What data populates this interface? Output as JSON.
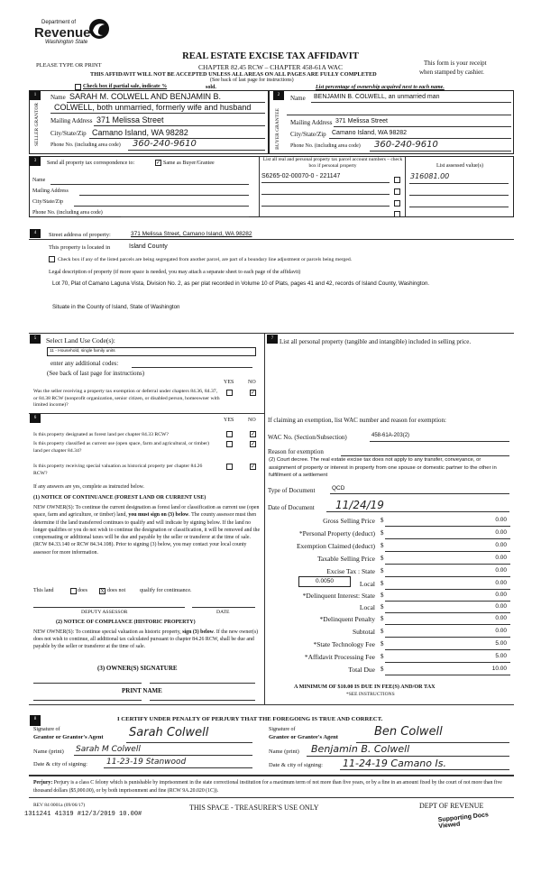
{
  "header": {
    "dept_top": "Department of",
    "dept_name": "Revenue",
    "dept_state": "Washington State",
    "please": "PLEASE TYPE OR PRINT",
    "title": "REAL ESTATE EXCISE TAX AFFIDAVIT",
    "chapter": "CHAPTER 82.45 RCW – CHAPTER 458-61A WAC",
    "warning": "THIS AFFIDAVIT WILL NOT BE ACCEPTED UNLESS ALL AREAS ON ALL PAGES ARE FULLY COMPLETED",
    "receipt1": "This form is your receipt",
    "receipt2": "when stamped by cashier.",
    "see_back": "(See back of last page for instructions)",
    "partial_sale": "Check box if partial sale, indicate %",
    "sold": "sold.",
    "ownership_note": "List percentage of ownership acquired next to each name."
  },
  "seller": {
    "num": "1",
    "side": "SELLER GRANTOR",
    "name_label": "Name",
    "name1": "SARAH M. COLWELL AND BENJAMIN B.",
    "name2": "COLWELL, both unmarried, formerly wife and husband",
    "mail_label": "Mailing Address",
    "mail": "371 Melissa Street",
    "city_label": "City/State/Zip",
    "city": "Camano Island, WA  98282",
    "phone_label": "Phone No. (including area code)",
    "phone": "360-240-9610"
  },
  "buyer": {
    "num": "2",
    "side": "BUYER GRANTEE",
    "name_label": "Name",
    "name1": "BENJAMIN B. COLWELL, an unmarried man",
    "mail_label": "Mailing Address",
    "mail": "371 Melissa Street",
    "city_label": "City/State/Zip",
    "city": "Camano Island, WA  98282",
    "phone_label": "Phone No. (including area code)",
    "phone": "360-240-9610"
  },
  "section3": {
    "num": "3",
    "send": "Send all property tax correspondence to:",
    "same": "Same as Buyer/Grantee",
    "same_checked": true,
    "name_label": "Name",
    "mail_label": "Mailing Address",
    "city_label": "City/State/Zip",
    "phone_label": "Phone No. (including area code)",
    "parcel_header": "List all real and personal property tax parcel account numbers – check box if personal property",
    "assessed_header": "List assessed value(s)",
    "parcel": "S6265-02-00070-0 - 221147",
    "assessed": "316081.00"
  },
  "section4": {
    "num": "4",
    "street_label": "Street address of property:",
    "street": "371 Melissa Street, Camano Island, WA  98282",
    "located_label": "This property is located in",
    "county": "Island County",
    "segregate": "Check box if any of the listed parcels are being segregated from another parcel, are part of a boundary line adjustment or parcels being merged.",
    "legal_label": "Legal description of property (if more space is needed, you may attach a separate sheet to each page of the affidavit)",
    "legal1": "Lot 70, Plat of Camano Laguna Vista, Division No. 2, as per plat recorded in Volume 10 of Plats, pages 41 and 42, records of Island County, Washington.",
    "legal2": "Situate in the County of Island, State of Washington"
  },
  "section5": {
    "num": "5",
    "label": "Select Land Use Code(s):",
    "code": "11 - Household, single family units",
    "additional": "enter any additional codes:",
    "see_back": "(See back of last page for instructions)",
    "yes": "YES",
    "no": "NO",
    "question": "Was the seller receiving a property tax exemption or deferral under chapters 84.36, 84.37, or 84.38 RCW (nonprofit organization, senior citizen, or disabled person, homeowner with limited income)?",
    "answer": "NO"
  },
  "section6": {
    "num": "6",
    "yes": "YES",
    "no": "NO",
    "q1": "Is this property designated as forest land per chapter 84.33 RCW?",
    "q2": "Is this property classified as current use (open space, farm and agricultural, or timber) land per chapter 84.34?",
    "q3": "Is this property receiving special valuation as historical property per chapter 84.26 RCW?",
    "answers": [
      "NO",
      "NO",
      "NO"
    ],
    "if_yes": "If any answers are yes, complete as instructed below.",
    "notice1_title": "(1) NOTICE OF CONTINUANCE  (FOREST LAND OR CURRENT USE)",
    "notice1_a": "NEW OWNER(S): To continue the current designation as forest land or classification as current use (open space, farm and agriculture, or timber) land, ",
    "notice1_bold": "you must sign on (3) below",
    "notice1_b": ". The county assessor must then determine if the land transferred continues to qualify and will indicate by signing below. If the land no longer qualifies or you do not wish to continue the designation or classification, it will be removed and the compensating or additional taxes will be due and payable by the seller or transferor at the time of sale. (RCW 84.33.140 or RCW 84.34.108). Prior to signing (3) below, you may contact your local county assessor for more information.",
    "this_land": "This land",
    "does": "does",
    "does_not": "does not",
    "qualify": "qualify for continuance.",
    "selected": "does not",
    "deputy": "DEPUTY ASSESSOR",
    "date": "DATE",
    "notice2_title": "(2) NOTICE OF COMPLIANCE (HISTORIC PROPERTY)",
    "notice2_a": "NEW OWNER(S): To continue special valuation as historic property, ",
    "notice2_bold": "sign (3) below",
    "notice2_b": ". If the new owner(s) does not wish to continue, all additional tax calculated pursuant to chapter 84.26 RCW, shall be due and payable by the seller or transferor at the time of sale.",
    "owner_sig": "(3)  OWNER(S) SIGNATURE",
    "print_name": "PRINT NAME"
  },
  "section7": {
    "num": "7",
    "label": "List all  personal property (tangible and intangible) included in selling price.",
    "exemption_label": "If claiming an exemption, list WAC number and reason for exemption:",
    "wac_label": "WAC No. (Section/Subsection)",
    "wac": "458-61A-203(2)",
    "reason_label": "Reason for exemption",
    "reason": "(2) Court decree. The real estate excise tax does not apply to any transfer, conveyance, or assignment of property or interest in property from one spouse or domestic partner to the other in fulfillment of a settlement",
    "type_label": "Type of Document",
    "type": "QCD",
    "date_label": "Date of Document",
    "date": "11/24/19"
  },
  "fees": [
    {
      "label": "Gross Selling Price",
      "value": "0.00"
    },
    {
      "label": "*Personal Property (deduct)",
      "value": "0.00"
    },
    {
      "label": "Exemption Claimed (deduct)",
      "value": "0.00"
    },
    {
      "label": "Taxable Selling Price",
      "value": "0.00"
    },
    {
      "label": "Excise Tax : State",
      "value": "0.00"
    },
    {
      "label": "Local",
      "value": "0.00",
      "rate": "0.0050"
    },
    {
      "label": "*Delinquent Interest: State",
      "value": "0.00"
    },
    {
      "label": "Local",
      "value": "0.00"
    },
    {
      "label": "*Delinquent Penalty",
      "value": "0.00"
    },
    {
      "label": "Subtotal",
      "value": "0.00"
    },
    {
      "label": "*State Technology Fee",
      "value": "5.00"
    },
    {
      "label": "*Affidavit Processing Fee",
      "value": "5.00"
    },
    {
      "label": "Total Due",
      "value": "10.00"
    }
  ],
  "fee_currency": "$",
  "minimum": "A MINIMUM OF $10.00 IS DUE IN FEE(S) AND/OR TAX",
  "see_instr": "*SEE INSTRUCTIONS",
  "section8": {
    "num": "8",
    "certify": "I CERTIFY UNDER PENALTY OF PERJURY THAT THE FOREGOING IS TRUE AND CORRECT.",
    "sig_of": "Signature of",
    "grantor_agent": "Grantor or Grantor's Agent",
    "grantee_agent": "Grantee or Grantee's Agent",
    "name_print": "Name (print)",
    "date_city": "Date & city of signing:",
    "grantor_sig": "Sarah Colwell",
    "grantor_name": "Sarah M Colwell",
    "grantor_date": "11-23-19  Stanwood",
    "grantee_sig": "Ben Colwell",
    "grantee_name": "Benjamin B. Colwell",
    "grantee_date": "11-24-19  Camano Is."
  },
  "perjury": {
    "bold": "Perjury:",
    "text": " Perjury is a class C felony which is punishable by imprisonment in the state correctional institution for a maximum term of not more than five years, or by a fine in an amount fixed by the court of not more than five thousand dollars ($5,000.00), or by both imprisonment and fine (RCW 9A.20.020 (1C))."
  },
  "footer": {
    "rev": "REV 84 0001a (09/06/17)",
    "receipt_stamp": "1311241 41319 #12/3/2019 10.00#",
    "treasurer": "THIS SPACE - TREASURER'S USE ONLY",
    "dept": "DEPT OF REVENUE",
    "stamp": "Supporting Docs Viewed"
  }
}
